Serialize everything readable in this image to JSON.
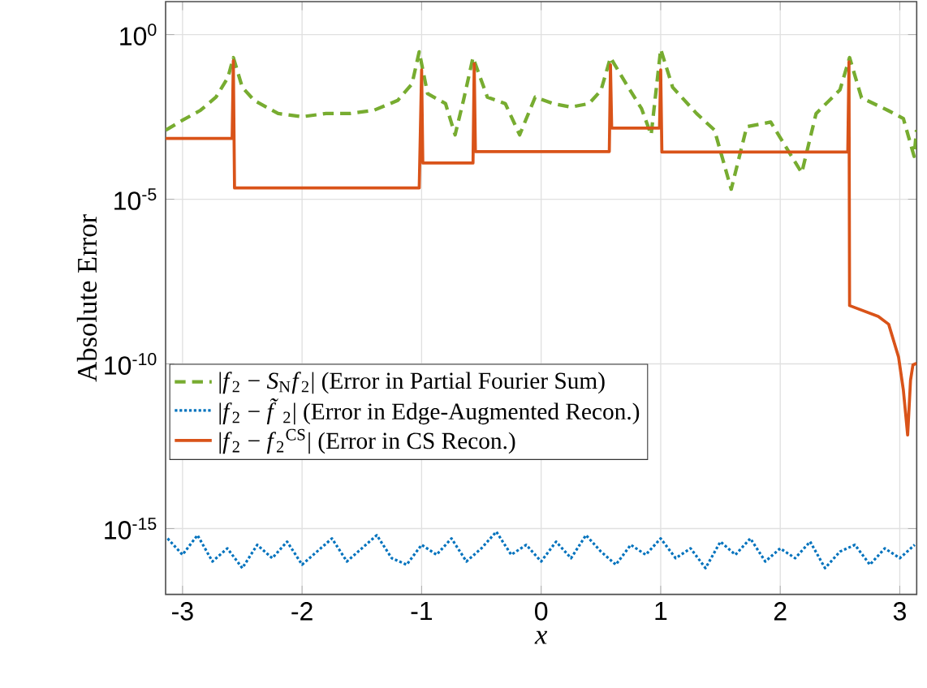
{
  "chart_data": {
    "type": "line",
    "xlabel": "x",
    "ylabel": "Absolute Error",
    "xlim": [
      -3.1416,
      3.1416
    ],
    "xticks": [
      -3,
      -2,
      -1,
      0,
      1,
      2,
      3
    ],
    "ylim": [
      1e-17,
      10
    ],
    "yticks": [
      {
        "value": 1e-15,
        "label": "10$^{-15}$"
      },
      {
        "value": 1e-10,
        "label": "10$^{-10}$"
      },
      {
        "value": 1e-05,
        "label": "10$^{-5}$"
      },
      {
        "value": 1,
        "label": "10$^{0}$"
      }
    ],
    "log": "y",
    "grid": true,
    "legend": "left",
    "series": [
      {
        "name": "|*f*$_{2}$ − *S*$_{N}$*f*$_{2}$| (Error in Partial Fourier Sum)",
        "color": "#77ac30",
        "line_style": "dashed",
        "x": [
          -3.14,
          -3.0,
          -2.85,
          -2.72,
          -2.62,
          -2.575,
          -2.5,
          -2.4,
          -2.2,
          -2.0,
          -1.8,
          -1.6,
          -1.4,
          -1.2,
          -1.08,
          -1.02,
          -0.95,
          -0.8,
          -0.72,
          -0.65,
          -0.57,
          -0.45,
          -0.3,
          -0.18,
          -0.05,
          0.1,
          0.25,
          0.4,
          0.5,
          0.58,
          0.7,
          0.84,
          0.92,
          1.0,
          1.1,
          1.3,
          1.45,
          1.59,
          1.72,
          1.92,
          2.18,
          2.3,
          2.5,
          2.58,
          2.68,
          2.9,
          3.03,
          3.12,
          3.14
        ],
        "values": [
          0.00126,
          0.0025,
          0.005,
          0.0126,
          0.05,
          0.2,
          0.025,
          0.01,
          0.004,
          0.0032,
          0.004,
          0.004,
          0.005,
          0.01,
          0.032,
          0.3,
          0.016,
          0.008,
          0.0009,
          0.01,
          0.2,
          0.0126,
          0.008,
          0.0009,
          0.0126,
          0.008,
          0.0063,
          0.008,
          0.02,
          0.2,
          0.037,
          0.0056,
          0.0009,
          0.36,
          0.025,
          0.004,
          0.00126,
          2e-05,
          0.0016,
          0.0022,
          6.3e-05,
          0.004,
          0.021,
          0.2,
          0.012,
          0.005,
          0.0028,
          0.0002,
          0.00126
        ]
      },
      {
        "name": "|*f*$_{2}$ − *f̃*$_{2}$| (Error in Edge-Augmented Recon.)",
        "color": "#0072bd",
        "line_style": "dotted",
        "x": [
          -3.125,
          -3.0,
          -2.875,
          -2.75,
          -2.625,
          -2.5,
          -2.375,
          -2.25,
          -2.125,
          -2.0,
          -1.875,
          -1.75,
          -1.625,
          -1.5,
          -1.375,
          -1.25,
          -1.125,
          -1.0,
          -0.875,
          -0.75,
          -0.625,
          -0.5,
          -0.375,
          -0.25,
          -0.125,
          0.0,
          0.125,
          0.25,
          0.375,
          0.5,
          0.625,
          0.75,
          0.875,
          1.0,
          1.125,
          1.25,
          1.375,
          1.5,
          1.625,
          1.75,
          1.875,
          2.0,
          2.125,
          2.25,
          2.375,
          2.5,
          2.625,
          2.75,
          2.875,
          3.0,
          3.125
        ],
        "values": [
          5e-16,
          1.6e-16,
          6.3e-16,
          1e-16,
          2.5e-16,
          6.3e-17,
          3.2e-16,
          1.26e-16,
          4e-16,
          8e-17,
          2e-16,
          5e-16,
          1e-16,
          2.5e-16,
          6.3e-16,
          1.26e-16,
          8e-17,
          3.2e-16,
          1.6e-16,
          5e-16,
          1e-16,
          2.5e-16,
          8e-16,
          1.6e-16,
          3.2e-16,
          1e-16,
          4e-16,
          1.26e-16,
          6.3e-16,
          2e-16,
          8e-17,
          3.2e-16,
          1.6e-16,
          5e-16,
          1.26e-16,
          2.5e-16,
          6.3e-17,
          4e-16,
          1.6e-16,
          5e-16,
          1e-16,
          2.5e-16,
          1.26e-16,
          4e-16,
          6.3e-17,
          2e-16,
          3.2e-16,
          8e-17,
          2.5e-16,
          1.26e-16,
          3.2e-16
        ]
      },
      {
        "name": "|*f*$_{2}$ − *f*$_{2}$$^{CS}$| (Error in CS Recon.)",
        "color": "#d95319",
        "line_style": "solid",
        "x": [
          -3.1416,
          -2.585,
          -2.575,
          -2.565,
          -1.02,
          -1.0,
          -0.99,
          -0.57,
          -0.56,
          -0.55,
          0.57,
          0.58,
          0.59,
          0.99,
          1.0,
          1.01,
          2.565,
          2.575,
          2.58,
          2.82,
          2.907,
          2.99,
          3.03,
          3.066,
          3.09,
          3.11,
          3.1416
        ],
        "values": [
          0.0007,
          0.0007,
          0.16,
          2.2e-05,
          2.2e-05,
          0.085,
          0.000126,
          0.000126,
          0.13,
          0.00028,
          0.00028,
          0.12,
          0.00145,
          0.00145,
          0.085,
          0.00027,
          0.00027,
          0.15,
          5.9e-09,
          2.75e-09,
          1.6e-09,
          1.6e-10,
          1.6e-11,
          6.9e-13,
          3.2e-11,
          9.3e-11,
          1.05e-10
        ]
      }
    ]
  }
}
